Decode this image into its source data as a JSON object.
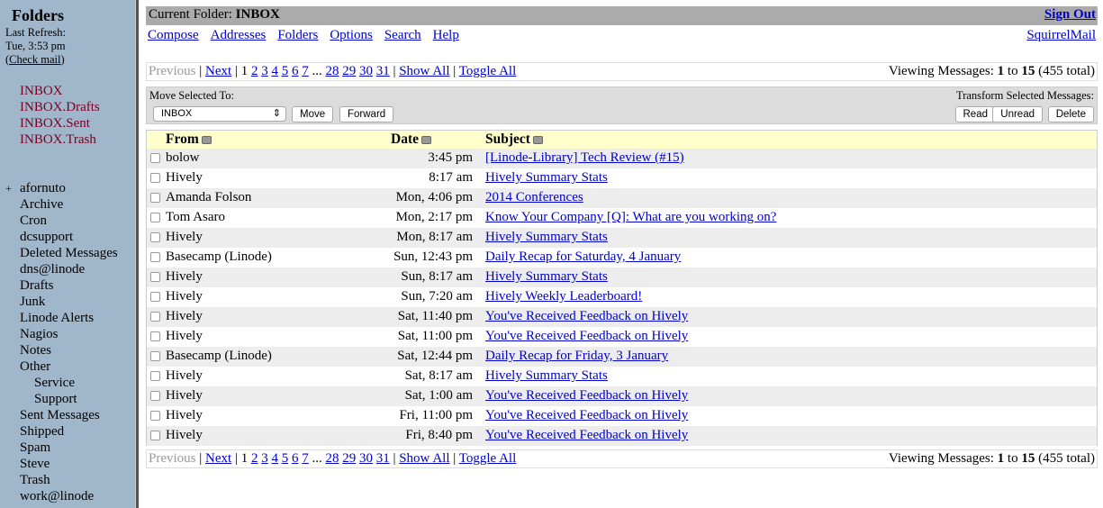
{
  "sidebar": {
    "title": "Folders",
    "last_refresh_label": "Last Refresh:",
    "last_refresh_time": "Tue, 3:53 pm",
    "check_mail": "Check mail",
    "special_folders": [
      "INBOX",
      "INBOX.Drafts",
      "INBOX.Sent",
      "INBOX.Trash"
    ],
    "folders": [
      {
        "label": "afornuto",
        "expander": "+"
      },
      {
        "label": "Archive"
      },
      {
        "label": "Cron"
      },
      {
        "label": "dcsupport"
      },
      {
        "label": "Deleted Messages"
      },
      {
        "label": "dns@linode"
      },
      {
        "label": "Drafts"
      },
      {
        "label": "Junk"
      },
      {
        "label": "Linode Alerts"
      },
      {
        "label": "Nagios"
      },
      {
        "label": "Notes"
      },
      {
        "label": "Other"
      },
      {
        "label": "Service",
        "indent": true
      },
      {
        "label": "Support",
        "indent": true
      },
      {
        "label": "Sent Messages"
      },
      {
        "label": "Shipped"
      },
      {
        "label": "Spam"
      },
      {
        "label": "Steve"
      },
      {
        "label": "Trash"
      },
      {
        "label": "work@linode"
      }
    ]
  },
  "header": {
    "current_folder_label": "Current Folder:",
    "current_folder": "INBOX",
    "sign_out": "Sign Out"
  },
  "nav": {
    "links": [
      "Compose",
      "Addresses",
      "Folders",
      "Options",
      "Search",
      "Help"
    ],
    "brand": "SquirrelMail"
  },
  "pager": {
    "previous": "Previous",
    "next": "Next",
    "current_page": "1",
    "pages_before": [
      "2",
      "3",
      "4",
      "5",
      "6",
      "7"
    ],
    "ellipsis": "...",
    "pages_after": [
      "28",
      "29",
      "30",
      "31"
    ],
    "show_all": "Show All",
    "toggle_all": "Toggle All",
    "viewing_label": "Viewing Messages:",
    "from": "1",
    "to_label": "to",
    "to": "15",
    "total": "(455 total)"
  },
  "actions": {
    "move_label": "Move Selected To:",
    "move_target": "INBOX",
    "move": "Move",
    "forward": "Forward",
    "transform_label": "Transform Selected Messages:",
    "read": "Read",
    "unread": "Unread",
    "delete": "Delete"
  },
  "table": {
    "headers": {
      "from": "From",
      "date": "Date",
      "subject": "Subject"
    },
    "rows": [
      {
        "from": "bolow",
        "date": "3:45 pm",
        "subject": "[Linode-Library] Tech Review (#15)"
      },
      {
        "from": "Hively",
        "date": "8:17 am",
        "subject": "Hively Summary Stats"
      },
      {
        "from": "Amanda Folson",
        "date": "Mon, 4:06 pm",
        "subject": "2014 Conferences"
      },
      {
        "from": "Tom Asaro",
        "date": "Mon, 2:17 pm",
        "subject": "Know Your Company [Q]: What are you working on?"
      },
      {
        "from": "Hively",
        "date": "Mon, 8:17 am",
        "subject": "Hively Summary Stats"
      },
      {
        "from": "Basecamp (Linode)",
        "date": "Sun, 12:43 pm",
        "subject": "Daily Recap for Saturday, 4 January"
      },
      {
        "from": "Hively",
        "date": "Sun, 8:17 am",
        "subject": "Hively Summary Stats"
      },
      {
        "from": "Hively",
        "date": "Sun, 7:20 am",
        "subject": "Hively Weekly Leaderboard!"
      },
      {
        "from": "Hively",
        "date": "Sat, 11:40 pm",
        "subject": "You've Received Feedback on Hively"
      },
      {
        "from": "Hively",
        "date": "Sat, 11:00 pm",
        "subject": "You've Received Feedback on Hively"
      },
      {
        "from": "Basecamp (Linode)",
        "date": "Sat, 12:44 pm",
        "subject": "Daily Recap for Friday, 3 January"
      },
      {
        "from": "Hively",
        "date": "Sat, 8:17 am",
        "subject": "Hively Summary Stats"
      },
      {
        "from": "Hively",
        "date": "Sat, 1:00 am",
        "subject": "You've Received Feedback on Hively"
      },
      {
        "from": "Hively",
        "date": "Fri, 11:00 pm",
        "subject": "You've Received Feedback on Hively"
      },
      {
        "from": "Hively",
        "date": "Fri, 8:40 pm",
        "subject": "You've Received Feedback on Hively"
      }
    ]
  }
}
